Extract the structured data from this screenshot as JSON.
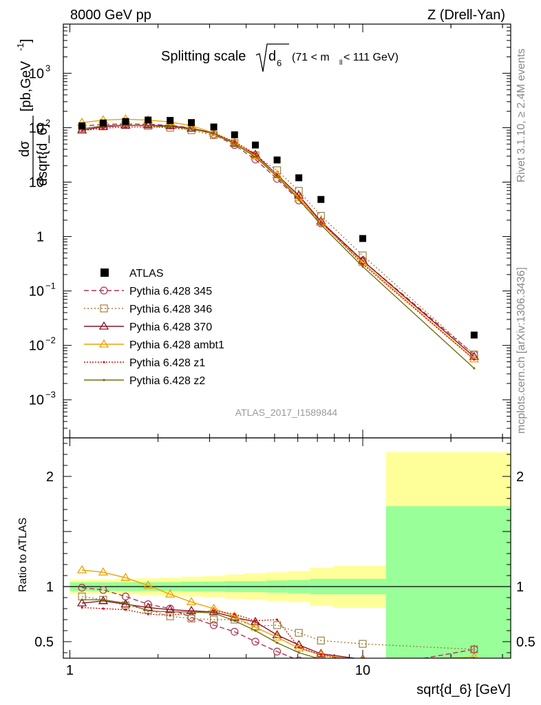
{
  "header": {
    "left": "8000 GeV pp",
    "right": "Z (Drell-Yan)"
  },
  "side_labels": {
    "rivet": "Rivet 3.1.10, ≥ 2.4M events",
    "mcplots": "mcplots.cern.ch [arXiv:1306.3436]"
  },
  "analysis_label": "ATLAS_2017_I1589844",
  "chart_data": [
    {
      "type": "line",
      "title": "Splitting scale √d₆ (71 < m_ll < 111 GeV)",
      "title_main": "Splitting scale",
      "title_sqrt_arg": "d",
      "title_sqrt_sub": "6",
      "title_range_a": "(71 < m",
      "title_range_sub": "ll",
      "title_range_b": " < 111 GeV)",
      "ylabel": "dσ / dsqrt{d_6} [pb,GeV⁻¹]",
      "ylabel_num": "dσ",
      "ylabel_den": "dsqrt{d_6}",
      "ylabel_unit": "[pb,GeV",
      "ylabel_unit_sup": "-1",
      "ylabel_unit_end": "]",
      "xscale": "log",
      "yscale": "log",
      "xlim": [
        0.95,
        32
      ],
      "ylim": [
        0.0002,
        8000
      ],
      "yticks": [
        {
          "v": 0.001,
          "base": "10",
          "exp": "−3"
        },
        {
          "v": 0.01,
          "base": "10",
          "exp": "−2"
        },
        {
          "v": 0.1,
          "base": "10",
          "exp": "−1"
        },
        {
          "v": 1,
          "base": "1",
          "exp": ""
        },
        {
          "v": 10,
          "base": "10",
          "exp": ""
        },
        {
          "v": 100,
          "base": "10",
          "exp": "2"
        },
        {
          "v": 1000,
          "base": "10",
          "exp": "3"
        }
      ],
      "x": [
        1.1,
        1.3,
        1.55,
        1.85,
        2.2,
        2.6,
        3.1,
        3.65,
        4.3,
        5.1,
        6.05,
        7.2,
        10.0,
        24.0
      ],
      "data": {
        "name": "ATLAS",
        "values": [
          108,
          122,
          130,
          138,
          136,
          124,
          103,
          74,
          48,
          25.5,
          12,
          4.8,
          0.92,
          0.0155
        ]
      },
      "series": [
        {
          "name": "Pythia 6.428 345",
          "color": "#b03050",
          "dash": "7,4",
          "marker": "circle",
          "values": [
            107,
            115,
            117,
            116,
            110,
            99,
            75,
            48,
            26,
            11.5,
            4.6,
            1.75,
            0.36,
            0.0068
          ]
        },
        {
          "name": "Pythia 6.428 346",
          "color": "#a08040",
          "dash": "2,3",
          "marker": "square",
          "values": [
            98,
            106,
            112,
            108,
            100,
            90,
            73,
            52,
            31,
            16.5,
            6.9,
            2.4,
            0.45,
            0.0068
          ]
        },
        {
          "name": "Pythia 6.428 370",
          "color": "#8b1028",
          "dash": "",
          "marker": "triangle",
          "values": [
            90,
            104,
            110,
            111,
            108,
            97,
            80,
            52,
            32,
            13.5,
            5.7,
            1.9,
            0.36,
            0.0062
          ]
        },
        {
          "name": "Pythia 6.428 ambt1",
          "color": "#f0a000",
          "dash": "",
          "marker": "triangle",
          "values": [
            124,
            138,
            143,
            138,
            127,
            109,
            80,
            54,
            30,
            13.4,
            5.1,
            1.8,
            0.33,
            0.0056
          ]
        },
        {
          "name": "Pythia 6.428 z1",
          "color": "#e01010",
          "dash": "2,2",
          "marker": "dot",
          "values": [
            88,
            98,
            103,
            103,
            101,
            94,
            80,
            55,
            33,
            13.8,
            5.5,
            1.85,
            0.31,
            0.0055
          ]
        },
        {
          "name": "Pythia 6.428 z2",
          "color": "#707010",
          "dash": "",
          "marker": "dot",
          "values": [
            95,
            108,
            111,
            109,
            105,
            95,
            78,
            51,
            29,
            12.6,
            4.8,
            1.65,
            0.28,
            0.0038
          ]
        }
      ],
      "legend_placement": "left-middle"
    },
    {
      "type": "line",
      "ylabel": "Ratio to ATLAS",
      "xlabel": "sqrt{d_6} [GeV]",
      "xscale": "log",
      "xlim": [
        0.95,
        32
      ],
      "ylim": [
        0.35,
        2.35
      ],
      "xticks": [
        {
          "v": 1,
          "label": "1"
        },
        {
          "v": 10,
          "label": "10"
        }
      ],
      "yticks": [
        {
          "v": 0.5,
          "label": "0.5"
        },
        {
          "v": 1,
          "label": "1"
        },
        {
          "v": 2,
          "label": "2"
        }
      ],
      "bin_edges": [
        1.0,
        1.2,
        1.42,
        1.7,
        2.02,
        2.4,
        2.85,
        3.38,
        3.95,
        4.68,
        5.52,
        6.6,
        7.9,
        12.0,
        32.0
      ],
      "band_stat": [
        [
          0.96,
          1.04
        ],
        [
          0.96,
          1.04
        ],
        [
          0.96,
          1.04
        ],
        [
          0.96,
          1.04
        ],
        [
          0.96,
          1.04
        ],
        [
          0.955,
          1.045
        ],
        [
          0.955,
          1.045
        ],
        [
          0.95,
          1.05
        ],
        [
          0.95,
          1.05
        ],
        [
          0.945,
          1.055
        ],
        [
          0.94,
          1.06
        ],
        [
          0.93,
          1.07
        ],
        [
          0.93,
          1.07
        ],
        [
          0.35,
          1.73
        ]
      ],
      "band_total": [
        [
          0.935,
          1.065
        ],
        [
          0.935,
          1.065
        ],
        [
          0.93,
          1.07
        ],
        [
          0.925,
          1.075
        ],
        [
          0.92,
          1.08
        ],
        [
          0.91,
          1.09
        ],
        [
          0.905,
          1.095
        ],
        [
          0.89,
          1.11
        ],
        [
          0.88,
          1.12
        ],
        [
          0.87,
          1.13
        ],
        [
          0.86,
          1.14
        ],
        [
          0.83,
          1.17
        ],
        [
          0.81,
          1.19
        ],
        [
          0.35,
          2.22
        ]
      ],
      "series": [
        {
          "name": "Pythia 6.428 345",
          "values": [
            0.99,
            0.97,
            0.91,
            0.84,
            0.8,
            0.72,
            0.65,
            0.59,
            0.5,
            0.41,
            0.33,
            0.3,
            0.25,
            0.43
          ]
        },
        {
          "name": "Pythia 6.428 346",
          "values": [
            0.91,
            0.88,
            0.83,
            0.79,
            0.73,
            0.71,
            0.7,
            0.7,
            0.64,
            0.65,
            0.58,
            0.51,
            0.48,
            0.43
          ]
        },
        {
          "name": "Pythia 6.428 370",
          "values": [
            0.85,
            0.87,
            0.84,
            0.81,
            0.79,
            0.78,
            0.77,
            0.72,
            0.68,
            0.56,
            0.47,
            0.39,
            0.34,
            0.28
          ]
        },
        {
          "name": "Pythia 6.428 ambt1",
          "values": [
            1.15,
            1.13,
            1.08,
            1.01,
            0.93,
            0.86,
            0.8,
            0.73,
            0.63,
            0.54,
            0.44,
            0.38,
            0.33,
            0.36
          ]
        },
        {
          "name": "Pythia 6.428 z1",
          "values": [
            0.81,
            0.8,
            0.79,
            0.75,
            0.74,
            0.76,
            0.78,
            0.75,
            0.69,
            0.7,
            0.45,
            0.38,
            0.31,
            0.35
          ]
        },
        {
          "name": "Pythia 6.428 z2",
          "values": [
            0.88,
            0.88,
            0.85,
            0.78,
            0.77,
            0.77,
            0.76,
            0.69,
            0.6,
            0.49,
            0.4,
            0.34,
            0.3,
            0.25
          ]
        }
      ]
    }
  ]
}
